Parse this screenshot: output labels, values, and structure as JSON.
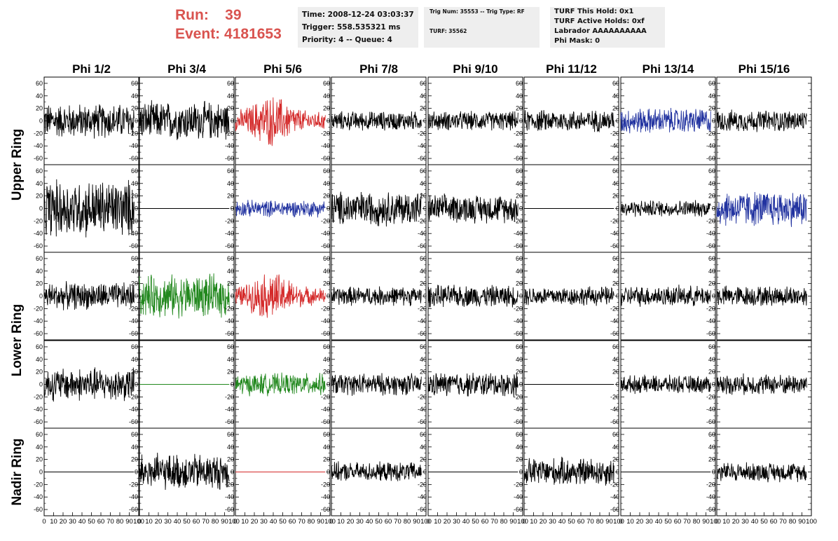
{
  "header": {
    "run_label": "Run:",
    "run_value": "39",
    "event_label": "Event:",
    "event_value": "4181653"
  },
  "info": {
    "time_line": "Time: 2008-12-24 03:03:37",
    "trigger_line": "Trigger: 558.535321 ms",
    "priority_line": "Priority: 4 -- Queue: 4",
    "trig_line": "Trig Num: 35553 -- Trig Type: RF",
    "turf_line": "TURF: 35562",
    "turf_hold_line": "TURF This Hold: 0x1",
    "turf_active_line": "TURF Active Holds: 0xf",
    "labrador_line": "Labrador AAAAAAAAAA",
    "phi_mask_line": "Phi Mask: 0"
  },
  "colors": {
    "title_red": "#d9534f",
    "trace_black": "#000000",
    "trace_red": "#d42a2a",
    "trace_blue": "#2233a0",
    "trace_green": "#22881e",
    "info_bg": "#eeeeee"
  },
  "chart_data": {
    "type": "line",
    "columns": [
      "Phi 1/2",
      "Phi 3/4",
      "Phi 5/6",
      "Phi 7/8",
      "Phi 9/10",
      "Phi 11/12",
      "Phi 13/14",
      "Phi 15/16"
    ],
    "rows": [
      "Upper Ring",
      "Upper Ring",
      "Lower Ring",
      "Lower Ring",
      "Nadir Ring"
    ],
    "row_labels": [
      {
        "label": "Upper Ring",
        "rows": [
          0,
          1
        ]
      },
      {
        "label": "Lower Ring",
        "rows": [
          2,
          3
        ]
      },
      {
        "label": "Nadir Ring",
        "rows": [
          4
        ]
      }
    ],
    "x_ticks": [
      0,
      10,
      20,
      30,
      40,
      50,
      60,
      70,
      80,
      90,
      100
    ],
    "xlim": [
      0,
      100
    ],
    "y_ticks": [
      -60,
      -40,
      -20,
      0,
      20,
      40,
      60
    ],
    "ylim": [
      -70,
      70
    ],
    "trace_x_range": [
      0,
      95
    ],
    "panels": [
      [
        {
          "color": "black",
          "amp": 27
        },
        {
          "color": "black",
          "amp": 30
        },
        {
          "color": "red",
          "amp": 30,
          "envelope": true
        },
        {
          "color": "black",
          "amp": 15
        },
        {
          "color": "black",
          "amp": 15
        },
        {
          "color": "black",
          "amp": 17
        },
        {
          "color": "blue",
          "amp": 20
        },
        {
          "color": "black",
          "amp": 17
        }
      ],
      [
        {
          "color": "black",
          "amp": 45
        },
        {
          "color": "black",
          "amp": 0
        },
        {
          "color": "blue",
          "amp": 13
        },
        {
          "color": "black",
          "amp": 27
        },
        {
          "color": "black",
          "amp": 22
        },
        {
          "color": "black",
          "amp": 0
        },
        {
          "color": "black",
          "amp": 13
        },
        {
          "color": "blue",
          "amp": 28
        }
      ],
      [
        {
          "color": "black",
          "amp": 21
        },
        {
          "color": "green",
          "amp": 33
        },
        {
          "color": "red",
          "amp": 28,
          "envelope": true
        },
        {
          "color": "black",
          "amp": 15
        },
        {
          "color": "black",
          "amp": 17
        },
        {
          "color": "black",
          "amp": 15
        },
        {
          "color": "black",
          "amp": 16
        },
        {
          "color": "black",
          "amp": 16
        }
      ],
      [
        {
          "color": "black",
          "amp": 26
        },
        {
          "color": "green",
          "amp": 0
        },
        {
          "color": "green",
          "amp": 17
        },
        {
          "color": "black",
          "amp": 17
        },
        {
          "color": "black",
          "amp": 19
        },
        {
          "color": "black",
          "amp": 0
        },
        {
          "color": "black",
          "amp": 14
        },
        {
          "color": "black",
          "amp": 16
        }
      ],
      [
        {
          "color": "black",
          "amp": 0
        },
        {
          "color": "black",
          "amp": 28
        },
        {
          "color": "red",
          "amp": 0
        },
        {
          "color": "black",
          "amp": 15
        },
        {
          "color": "black",
          "amp": 0
        },
        {
          "color": "black",
          "amp": 22
        },
        {
          "color": "black",
          "amp": 0
        },
        {
          "color": "black",
          "amp": 15
        }
      ]
    ]
  }
}
